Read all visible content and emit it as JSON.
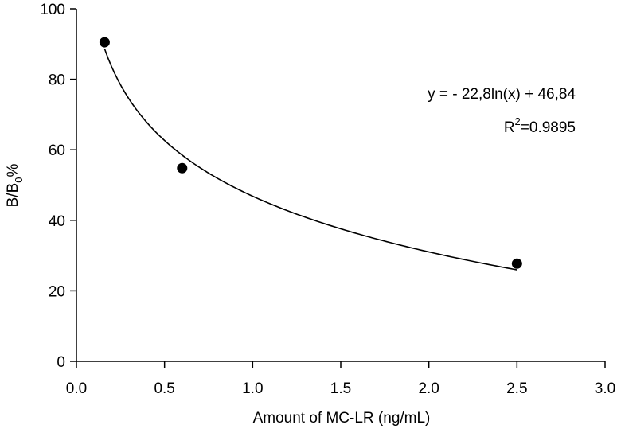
{
  "chart_data": {
    "type": "scatter",
    "xlabel": "Amount of MC-LR (ng/mL)",
    "ylabel_main": "B/B",
    "ylabel_sub": "0",
    "ylabel_suffix": "%",
    "xlim": [
      0.0,
      3.0
    ],
    "ylim": [
      0,
      100
    ],
    "xticks": [
      0.0,
      0.5,
      1.0,
      1.5,
      2.0,
      2.5,
      3.0
    ],
    "xtick_labels": [
      "0.0",
      "0.5",
      "1.0",
      "1.5",
      "2.0",
      "2.5",
      "3.0"
    ],
    "yticks": [
      0,
      20,
      40,
      60,
      80,
      100
    ],
    "ytick_labels": [
      "0",
      "20",
      "40",
      "60",
      "80",
      "100"
    ],
    "series": [
      {
        "name": "data",
        "x": [
          0.16,
          0.6,
          2.5
        ],
        "y": [
          90.5,
          54.8,
          27.7
        ],
        "marker": "circle",
        "color": "#000000"
      }
    ],
    "fit": {
      "type": "logarithmic",
      "a": -22.8,
      "b": 46.84,
      "x_range": [
        0.16,
        2.5
      ],
      "color": "#000000"
    },
    "annotations": {
      "equation": "y = - 22,8ln(x) + 46,84",
      "r2_prefix": "R",
      "r2_sup": "2",
      "r2_value": "=0.9895"
    },
    "grid": false
  }
}
